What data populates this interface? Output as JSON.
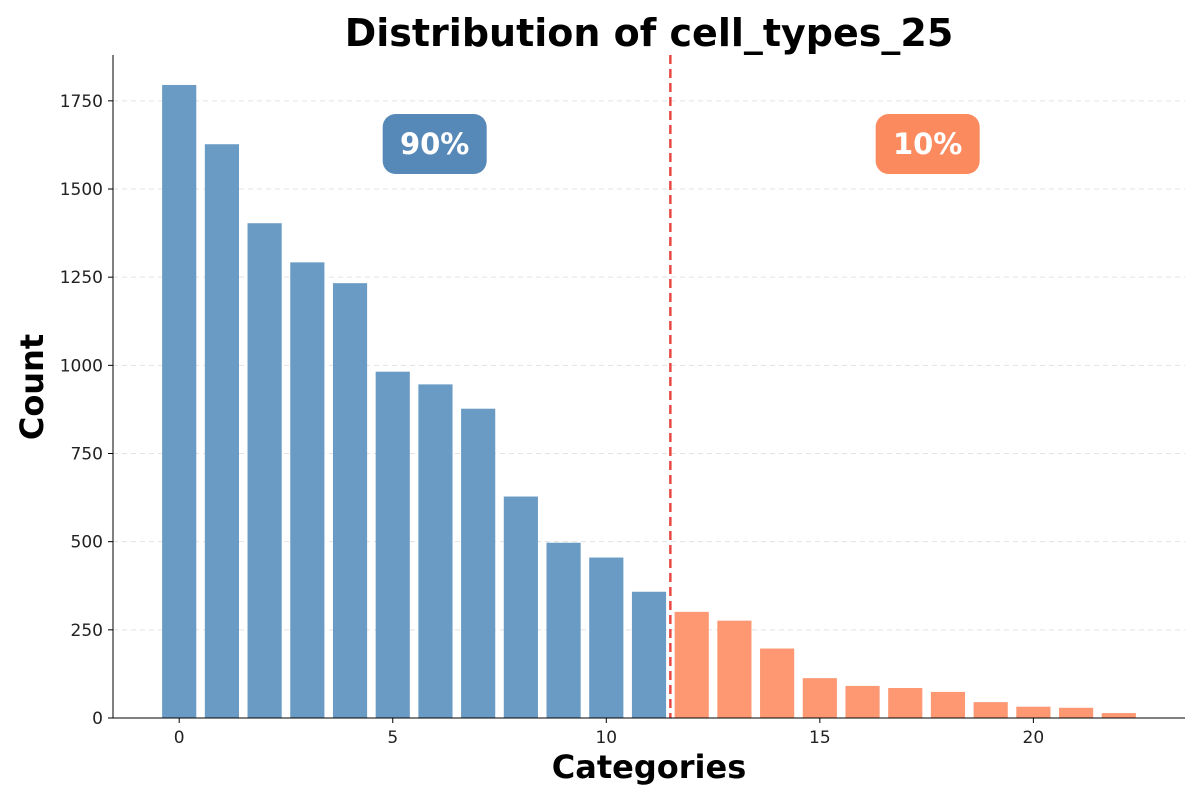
{
  "chart_data": {
    "type": "bar",
    "title": "Distribution of cell_types_25",
    "xlabel": "Categories",
    "ylabel": "Count",
    "categories": [
      0,
      1,
      2,
      3,
      4,
      5,
      6,
      7,
      8,
      9,
      10,
      11,
      12,
      13,
      14,
      15,
      16,
      17,
      18,
      19,
      20,
      21,
      22
    ],
    "values": [
      1795,
      1627,
      1403,
      1292,
      1233,
      982,
      946,
      877,
      628,
      497,
      455,
      358,
      301,
      276,
      197,
      113,
      91,
      85,
      74,
      45,
      32,
      29,
      14
    ],
    "xticks": [
      0,
      5,
      10,
      15,
      20
    ],
    "yticks": [
      0,
      250,
      500,
      750,
      1000,
      1250,
      1500,
      1750
    ],
    "xlim": [
      -1.55,
      23.55
    ],
    "ylim": [
      0,
      1880
    ],
    "split_index": 12,
    "split_line_x": 11.5,
    "grid": "y-dashed",
    "groups": [
      {
        "name": "head",
        "label": "90%",
        "bar_color": "#6a9bc5",
        "badge_color": "#5689b8"
      },
      {
        "name": "tail",
        "label": "10%",
        "bar_color": "#fd9872",
        "badge_color": "#fb8a5f"
      }
    ],
    "split_line_color": "#e84a43"
  }
}
